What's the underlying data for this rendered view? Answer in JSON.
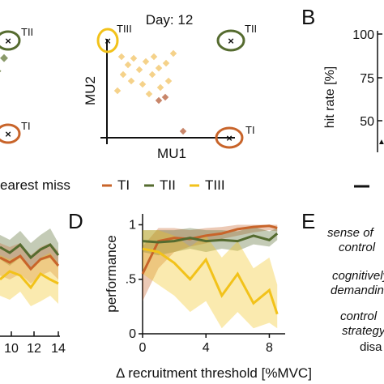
{
  "colors": {
    "TI": "#c8642a",
    "TII": "#556b2f",
    "TIII": "#f2c21a",
    "TIII_scatter": "#f5d28a",
    "TI_scatter": "#c8866a",
    "TII_scatter": "#8a9a6a",
    "axis": "#111111"
  },
  "panel_c": {
    "title": "Day: 12",
    "xlabel": "MU1",
    "ylabel": "MU2",
    "label_TI": "TI",
    "label_TII": "TII",
    "label_TIII": "TIII"
  },
  "panel_left": {
    "label_TI": "TI",
    "label_TII": "TII"
  },
  "panel_b": {
    "letter": "B",
    "ylabel": "hit rate [%]",
    "ticks": [
      "100",
      "75",
      "50"
    ]
  },
  "legend": {
    "nearest_miss": "earest miss",
    "items": [
      "TI",
      "TII",
      "TIII"
    ]
  },
  "panel_left_bottom": {
    "ticks": [
      "10",
      "12",
      "14"
    ]
  },
  "panel_e": {
    "letter": "E",
    "lines": [
      "sense of",
      "control",
      "cognitively",
      "demanding",
      "control",
      "strategy",
      "disa"
    ]
  },
  "chart_data": [
    {
      "panel": "D",
      "type": "line",
      "title": "",
      "xlabel": "Δ recruitment threshold [%MVC]",
      "ylabel": "performance",
      "xlim": [
        0,
        9
      ],
      "ylim": [
        0,
        1.1
      ],
      "xticks": [
        "0",
        "4",
        "8"
      ],
      "yticks": [
        "0",
        ".5",
        "1"
      ],
      "x": [
        0,
        1,
        2,
        3,
        4,
        5,
        6,
        7,
        8,
        8.5
      ],
      "series": [
        {
          "name": "TI",
          "values": [
            0.55,
            0.85,
            0.88,
            0.87,
            0.9,
            0.92,
            0.96,
            0.98,
            0.99,
            0.97
          ],
          "lower": [
            0.3,
            0.6,
            0.75,
            0.8,
            0.83,
            0.87,
            0.9,
            0.93,
            0.95,
            0.94
          ],
          "upper": [
            0.8,
            0.97,
            0.97,
            0.95,
            0.97,
            0.98,
            1.0,
            1.0,
            1.0,
            1.0
          ]
        },
        {
          "name": "TII",
          "values": [
            0.85,
            0.84,
            0.85,
            0.88,
            0.85,
            0.86,
            0.85,
            0.9,
            0.86,
            0.92
          ],
          "lower": [
            0.75,
            0.72,
            0.75,
            0.78,
            0.75,
            0.78,
            0.76,
            0.82,
            0.8,
            0.86
          ],
          "upper": [
            0.95,
            0.95,
            0.95,
            0.97,
            0.95,
            0.95,
            0.94,
            0.98,
            0.94,
            0.97
          ]
        },
        {
          "name": "TIII",
          "values": [
            0.78,
            0.75,
            0.65,
            0.5,
            0.68,
            0.35,
            0.55,
            0.28,
            0.4,
            0.18
          ],
          "lower": [
            0.55,
            0.45,
            0.35,
            0.2,
            0.3,
            0.05,
            0.2,
            0.05,
            0.1,
            0.05
          ],
          "upper": [
            0.95,
            0.95,
            0.9,
            0.8,
            0.9,
            0.7,
            0.85,
            0.6,
            0.7,
            0.45
          ]
        }
      ]
    }
  ]
}
